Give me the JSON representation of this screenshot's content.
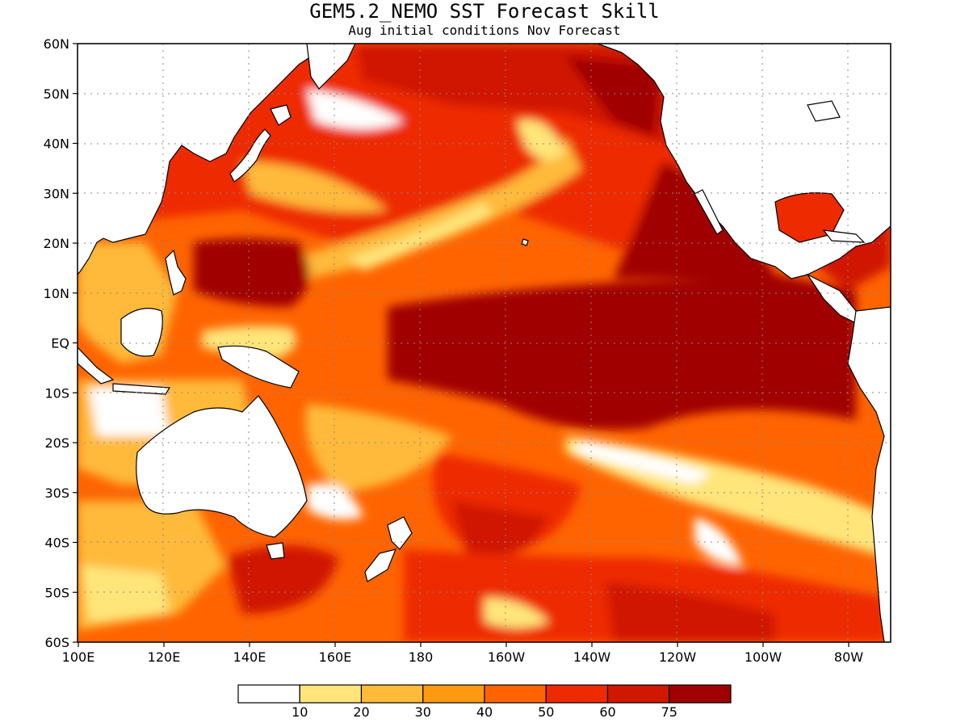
{
  "title": "GEM5.2_NEMO SST Forecast Skill",
  "subtitle": "Aug initial conditions  Nov Forecast",
  "map": {
    "lat_labels": [
      "60N",
      "50N",
      "40N",
      "30N",
      "20N",
      "10N",
      "EQ",
      "10S",
      "20S",
      "30S",
      "40S",
      "50S",
      "60S"
    ],
    "lon_labels": [
      "100E",
      "120E",
      "140E",
      "160E",
      "180",
      "160W",
      "140W",
      "120W",
      "100W",
      "80W"
    ],
    "lat_range": [
      -60,
      60
    ],
    "lon_range": [
      100,
      290
    ],
    "grid": "dotted"
  },
  "legend": {
    "bins": [
      {
        "color": "#ffffff"
      },
      {
        "color": "#ffe57a"
      },
      {
        "color": "#ffba3a"
      },
      {
        "color": "#ff9a10"
      },
      {
        "color": "#ff6400"
      },
      {
        "color": "#ee2a00"
      },
      {
        "color": "#d01800"
      },
      {
        "color": "#a00000"
      }
    ],
    "labels": [
      "10",
      "20",
      "30",
      "40",
      "50",
      "60",
      "75"
    ]
  }
}
